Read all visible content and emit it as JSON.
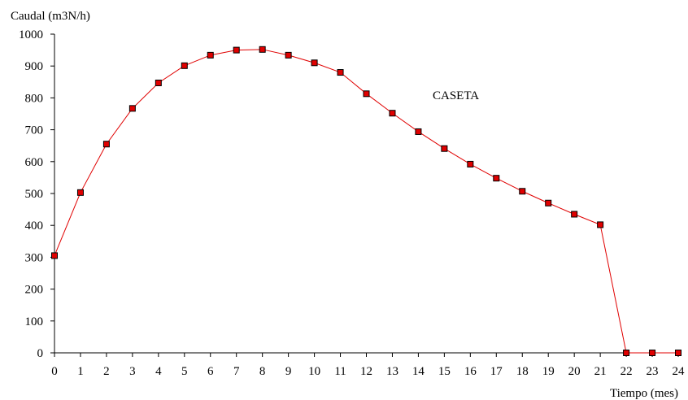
{
  "chart_data": {
    "type": "line",
    "title": "",
    "xlabel": "Tiempo (mes)",
    "ylabel": "Caudal (m3N/h)",
    "annotation": "CASETA",
    "x": [
      0,
      1,
      2,
      3,
      4,
      5,
      6,
      7,
      8,
      9,
      10,
      11,
      12,
      13,
      14,
      15,
      16,
      17,
      18,
      19,
      20,
      21,
      22,
      23,
      24
    ],
    "series": [
      {
        "values": [
          305,
          503,
          655,
          767,
          847,
          901,
          934,
          950,
          952,
          934,
          910,
          880,
          813,
          752,
          694,
          641,
          592,
          548,
          507,
          470,
          435,
          402,
          0,
          0,
          0
        ]
      }
    ],
    "xlim": [
      0,
      24
    ],
    "ylim": [
      0,
      1000
    ],
    "yticks": [
      0,
      100,
      200,
      300,
      400,
      500,
      600,
      700,
      800,
      900,
      1000
    ],
    "xticks": [
      0,
      1,
      2,
      3,
      4,
      5,
      6,
      7,
      8,
      9,
      10,
      11,
      12,
      13,
      14,
      15,
      16,
      17,
      18,
      19,
      20,
      21,
      22,
      23,
      24
    ],
    "grid": false,
    "colors": {
      "line": "#e00000",
      "marker_fill": "#e00000",
      "marker_edge": "#000000",
      "axis": "#000000"
    }
  }
}
